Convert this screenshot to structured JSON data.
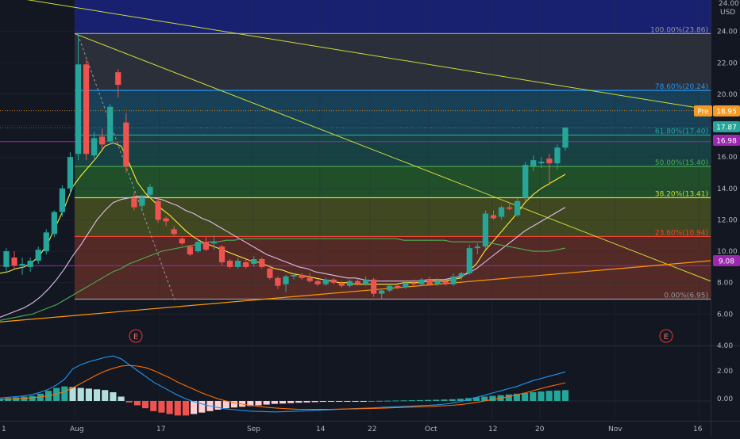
{
  "currency_label": "USD",
  "top_price_label": "24.00",
  "earnings_marker": "E",
  "price_axis": {
    "min": 4,
    "max": 26,
    "ticks": [
      "24.00",
      "22.00",
      "20.00",
      "18.00",
      "16.00",
      "14.00",
      "12.00",
      "10.00",
      "8.00",
      "6.00",
      "4.00"
    ]
  },
  "price_badges": [
    {
      "text": "Pre",
      "color": "#f59a23"
    },
    {
      "text": "18.95",
      "color": "#f59a23"
    },
    {
      "text": "17.87",
      "color": "#26a69a"
    },
    {
      "text": "16.98",
      "color": "#9c27b0"
    },
    {
      "text": "9.08",
      "color": "#9c27b0"
    }
  ],
  "macd_axis": {
    "ticks": [
      "2.00",
      "0.00"
    ]
  },
  "time_axis": {
    "labels": [
      "1",
      "Aug",
      "17",
      "Sep",
      "14",
      "22",
      "Oct",
      "12",
      "20",
      "Nov",
      "16"
    ]
  },
  "fibonacci": {
    "levels": [
      {
        "label": "100.00%(23.86)",
        "price": 23.86,
        "color": "#9598a1"
      },
      {
        "label": "78.60%(20.24)",
        "price": 20.24,
        "color": "#2196f3"
      },
      {
        "label": "61.80%(17.40)",
        "price": 17.4,
        "color": "#26a69a"
      },
      {
        "label": "50.00%(15.40)",
        "price": 15.4,
        "color": "#4caf50"
      },
      {
        "label": "38.20%(13.41)",
        "price": 13.41,
        "color": "#cddc39"
      },
      {
        "label": "23.60%(10.94)",
        "price": 10.94,
        "color": "#f44336"
      },
      {
        "label": "0.00%(6.95)",
        "price": 6.95,
        "color": "#9598a1"
      }
    ]
  },
  "chart_data": {
    "type": "candlestick",
    "instrument_currency": "USD",
    "y_range": [
      4,
      26
    ],
    "candles": [
      {
        "o": 9.0,
        "h": 10.2,
        "l": 8.6,
        "c": 10.0
      },
      {
        "o": 9.6,
        "h": 10.0,
        "l": 8.9,
        "c": 9.1
      },
      {
        "o": 9.1,
        "h": 9.6,
        "l": 8.5,
        "c": 9.2
      },
      {
        "o": 9.0,
        "h": 9.6,
        "l": 8.7,
        "c": 9.4
      },
      {
        "o": 9.4,
        "h": 10.3,
        "l": 9.2,
        "c": 10.1
      },
      {
        "o": 10.0,
        "h": 11.4,
        "l": 9.8,
        "c": 11.2
      },
      {
        "o": 11.1,
        "h": 12.6,
        "l": 10.9,
        "c": 12.5
      },
      {
        "o": 12.5,
        "h": 14.2,
        "l": 12.2,
        "c": 14.0
      },
      {
        "o": 14.0,
        "h": 16.3,
        "l": 13.6,
        "c": 16.0
      },
      {
        "o": 16.2,
        "h": 23.86,
        "l": 15.8,
        "c": 21.9
      },
      {
        "o": 21.9,
        "h": 22.2,
        "l": 15.8,
        "c": 16.2
      },
      {
        "o": 16.1,
        "h": 17.6,
        "l": 15.9,
        "c": 17.2
      },
      {
        "o": 17.3,
        "h": 17.8,
        "l": 16.5,
        "c": 16.8
      },
      {
        "o": 17.0,
        "h": 19.4,
        "l": 16.8,
        "c": 19.2
      },
      {
        "o": 21.4,
        "h": 21.6,
        "l": 19.8,
        "c": 20.6
      },
      {
        "o": 18.2,
        "h": 18.8,
        "l": 15.0,
        "c": 15.4
      },
      {
        "o": 13.4,
        "h": 13.8,
        "l": 12.6,
        "c": 12.8
      },
      {
        "o": 12.9,
        "h": 13.6,
        "l": 12.6,
        "c": 13.4
      },
      {
        "o": 13.6,
        "h": 14.3,
        "l": 13.4,
        "c": 14.1
      },
      {
        "o": 13.2,
        "h": 13.4,
        "l": 11.8,
        "c": 12.0
      },
      {
        "o": 12.1,
        "h": 12.2,
        "l": 11.6,
        "c": 11.9
      },
      {
        "o": 11.4,
        "h": 11.6,
        "l": 11.0,
        "c": 11.1
      },
      {
        "o": 10.8,
        "h": 10.9,
        "l": 10.4,
        "c": 10.5
      },
      {
        "o": 10.3,
        "h": 10.4,
        "l": 9.7,
        "c": 9.8
      },
      {
        "o": 10.0,
        "h": 10.8,
        "l": 9.9,
        "c": 10.6
      },
      {
        "o": 10.6,
        "h": 10.9,
        "l": 10.0,
        "c": 10.1
      },
      {
        "o": 10.5,
        "h": 11.0,
        "l": 10.1,
        "c": 10.6
      },
      {
        "o": 10.3,
        "h": 10.4,
        "l": 9.1,
        "c": 9.3
      },
      {
        "o": 9.4,
        "h": 9.5,
        "l": 8.9,
        "c": 9.0
      },
      {
        "o": 9.0,
        "h": 9.6,
        "l": 8.9,
        "c": 9.4
      },
      {
        "o": 9.3,
        "h": 9.5,
        "l": 8.9,
        "c": 9.0
      },
      {
        "o": 9.2,
        "h": 9.7,
        "l": 9.0,
        "c": 9.5
      },
      {
        "o": 9.5,
        "h": 9.6,
        "l": 8.9,
        "c": 9.0
      },
      {
        "o": 8.9,
        "h": 9.1,
        "l": 8.2,
        "c": 8.3
      },
      {
        "o": 8.3,
        "h": 8.4,
        "l": 7.6,
        "c": 7.8
      },
      {
        "o": 7.9,
        "h": 8.5,
        "l": 7.4,
        "c": 8.4
      },
      {
        "o": 8.4,
        "h": 8.6,
        "l": 8.2,
        "c": 8.5
      },
      {
        "o": 8.5,
        "h": 8.6,
        "l": 8.2,
        "c": 8.3
      },
      {
        "o": 8.3,
        "h": 8.6,
        "l": 8.0,
        "c": 8.1
      },
      {
        "o": 8.1,
        "h": 8.2,
        "l": 7.8,
        "c": 7.9
      },
      {
        "o": 7.9,
        "h": 8.3,
        "l": 7.8,
        "c": 8.2
      },
      {
        "o": 8.2,
        "h": 8.3,
        "l": 7.9,
        "c": 8.0
      },
      {
        "o": 8.0,
        "h": 8.1,
        "l": 7.7,
        "c": 7.8
      },
      {
        "o": 7.8,
        "h": 8.2,
        "l": 7.7,
        "c": 8.1
      },
      {
        "o": 8.1,
        "h": 8.3,
        "l": 7.8,
        "c": 7.9
      },
      {
        "o": 7.9,
        "h": 8.4,
        "l": 7.8,
        "c": 8.2
      },
      {
        "o": 8.2,
        "h": 8.3,
        "l": 7.1,
        "c": 7.3
      },
      {
        "o": 7.3,
        "h": 7.6,
        "l": 6.95,
        "c": 7.5
      },
      {
        "o": 7.5,
        "h": 7.9,
        "l": 7.4,
        "c": 7.8
      },
      {
        "o": 7.8,
        "h": 8.0,
        "l": 7.6,
        "c": 7.7
      },
      {
        "o": 7.7,
        "h": 8.1,
        "l": 7.6,
        "c": 8.0
      },
      {
        "o": 8.0,
        "h": 8.2,
        "l": 7.8,
        "c": 7.9
      },
      {
        "o": 7.9,
        "h": 8.3,
        "l": 7.8,
        "c": 8.2
      },
      {
        "o": 8.2,
        "h": 8.4,
        "l": 7.8,
        "c": 7.9
      },
      {
        "o": 7.9,
        "h": 8.3,
        "l": 7.8,
        "c": 8.1
      },
      {
        "o": 8.1,
        "h": 8.2,
        "l": 7.8,
        "c": 7.9
      },
      {
        "o": 7.9,
        "h": 8.6,
        "l": 7.8,
        "c": 8.4
      },
      {
        "o": 8.4,
        "h": 8.7,
        "l": 8.2,
        "c": 8.6
      },
      {
        "o": 8.6,
        "h": 10.4,
        "l": 8.5,
        "c": 10.2
      },
      {
        "o": 10.2,
        "h": 10.5,
        "l": 9.8,
        "c": 10.3
      },
      {
        "o": 10.3,
        "h": 12.6,
        "l": 10.1,
        "c": 12.4
      },
      {
        "o": 12.3,
        "h": 12.6,
        "l": 12.0,
        "c": 12.1
      },
      {
        "o": 12.2,
        "h": 12.9,
        "l": 12.0,
        "c": 12.8
      },
      {
        "o": 12.8,
        "h": 13.1,
        "l": 12.6,
        "c": 12.7
      },
      {
        "o": 12.3,
        "h": 13.4,
        "l": 12.2,
        "c": 13.2
      },
      {
        "o": 13.4,
        "h": 15.7,
        "l": 13.2,
        "c": 15.5
      },
      {
        "o": 15.4,
        "h": 16.1,
        "l": 15.1,
        "c": 15.8
      },
      {
        "o": 15.6,
        "h": 16.0,
        "l": 15.3,
        "c": 15.7
      },
      {
        "o": 15.9,
        "h": 16.2,
        "l": 14.2,
        "c": 15.6
      },
      {
        "o": 15.6,
        "h": 16.8,
        "l": 15.2,
        "c": 16.6
      },
      {
        "o": 16.6,
        "h": 17.9,
        "l": 16.4,
        "c": 17.87
      }
    ],
    "moving_averages": [
      {
        "color": "#ffeb3b",
        "values": [
          8.6,
          8.7,
          8.9,
          9.0,
          9.3,
          9.8,
          10.6,
          11.7,
          12.8,
          14.1,
          14.8,
          15.4,
          16.0,
          16.7,
          16.9,
          16.7,
          15.6,
          14.4,
          13.7,
          13.2,
          12.7,
          12.3,
          11.8,
          11.3,
          10.9,
          10.6,
          10.4,
          10.2,
          10.0,
          9.8,
          9.6,
          9.4,
          9.3,
          9.1,
          8.9,
          8.8,
          8.6,
          8.5,
          8.4,
          8.3,
          8.2,
          8.1,
          8.0,
          8.0,
          7.9,
          7.9,
          7.9,
          7.9,
          7.9,
          7.9,
          8.0,
          8.0,
          8.0,
          8.1,
          8.1,
          8.1,
          8.2,
          8.3,
          8.7,
          9.2,
          10.0,
          10.6,
          11.2,
          11.8,
          12.4,
          13.1,
          13.6,
          14.0,
          14.3,
          14.6,
          14.9
        ]
      },
      {
        "color": "#e1bee7",
        "values": [
          5.8,
          6.0,
          6.2,
          6.4,
          6.7,
          7.1,
          7.6,
          8.2,
          8.9,
          9.7,
          10.4,
          11.2,
          12.0,
          12.6,
          13.1,
          13.3,
          13.4,
          13.5,
          13.5,
          13.4,
          13.3,
          13.1,
          12.9,
          12.6,
          12.4,
          12.1,
          11.9,
          11.6,
          11.3,
          11.0,
          10.7,
          10.4,
          10.1,
          9.8,
          9.6,
          9.4,
          9.2,
          9.0,
          8.9,
          8.7,
          8.6,
          8.5,
          8.4,
          8.3,
          8.3,
          8.2,
          8.1,
          8.1,
          8.1,
          8.1,
          8.1,
          8.1,
          8.1,
          8.2,
          8.2,
          8.2,
          8.3,
          8.4,
          8.6,
          8.9,
          9.3,
          9.7,
          10.1,
          10.5,
          10.9,
          11.3,
          11.6,
          11.9,
          12.2,
          12.5,
          12.8
        ]
      },
      {
        "color": "#4caf50",
        "values": [
          5.6,
          5.7,
          5.8,
          5.9,
          6.0,
          6.2,
          6.4,
          6.6,
          6.9,
          7.2,
          7.5,
          7.8,
          8.1,
          8.4,
          8.7,
          8.9,
          9.2,
          9.4,
          9.6,
          9.8,
          10.0,
          10.1,
          10.2,
          10.3,
          10.4,
          10.5,
          10.6,
          10.6,
          10.7,
          10.7,
          10.8,
          10.8,
          10.8,
          10.8,
          10.8,
          10.8,
          10.8,
          10.8,
          10.8,
          10.8,
          10.8,
          10.8,
          10.8,
          10.8,
          10.8,
          10.8,
          10.8,
          10.8,
          10.8,
          10.8,
          10.7,
          10.7,
          10.7,
          10.7,
          10.7,
          10.7,
          10.6,
          10.6,
          10.6,
          10.6,
          10.6,
          10.5,
          10.4,
          10.3,
          10.2,
          10.1,
          10.0,
          10.0,
          10.0,
          10.1,
          10.2
        ]
      }
    ],
    "macd": {
      "y_range": [
        -1.2,
        3.6
      ],
      "histogram": [
        0.15,
        0.2,
        0.25,
        0.3,
        0.35,
        0.5,
        0.7,
        0.9,
        1.0,
        0.95,
        0.9,
        0.85,
        0.8,
        0.75,
        0.6,
        0.3,
        -0.1,
        -0.3,
        -0.5,
        -0.7,
        -0.8,
        -0.9,
        -1.0,
        -1.0,
        -0.9,
        -0.8,
        -0.7,
        -0.6,
        -0.5,
        -0.45,
        -0.4,
        -0.35,
        -0.3,
        -0.25,
        -0.2,
        -0.18,
        -0.15,
        -0.12,
        -0.1,
        -0.08,
        -0.06,
        -0.05,
        -0.04,
        -0.03,
        -0.02,
        -0.01,
        0.0,
        0.01,
        0.02,
        0.03,
        0.04,
        0.05,
        0.06,
        0.07,
        0.08,
        0.1,
        0.12,
        0.15,
        0.2,
        0.25,
        0.3,
        0.35,
        0.4,
        0.45,
        0.5,
        0.55,
        0.6,
        0.65,
        0.7,
        0.72,
        0.75
      ],
      "macd_line": {
        "color": "#2196f3",
        "values": [
          0.2,
          0.25,
          0.3,
          0.35,
          0.45,
          0.6,
          0.8,
          1.1,
          1.5,
          2.2,
          2.5,
          2.7,
          2.85,
          3.0,
          3.1,
          2.9,
          2.5,
          2.1,
          1.7,
          1.3,
          1.0,
          0.7,
          0.4,
          0.15,
          -0.05,
          -0.2,
          -0.35,
          -0.45,
          -0.55,
          -0.6,
          -0.65,
          -0.7,
          -0.72,
          -0.74,
          -0.75,
          -0.74,
          -0.72,
          -0.7,
          -0.68,
          -0.65,
          -0.62,
          -0.6,
          -0.57,
          -0.55,
          -0.52,
          -0.5,
          -0.48,
          -0.45,
          -0.42,
          -0.4,
          -0.37,
          -0.35,
          -0.32,
          -0.3,
          -0.27,
          -0.22,
          -0.15,
          -0.05,
          0.1,
          0.25,
          0.4,
          0.55,
          0.7,
          0.85,
          1.0,
          1.2,
          1.4,
          1.55,
          1.7,
          1.85,
          2.0
        ]
      },
      "signal_line": {
        "color": "#ff6d00",
        "values": [
          0.1,
          0.12,
          0.15,
          0.18,
          0.22,
          0.28,
          0.36,
          0.48,
          0.65,
          0.9,
          1.2,
          1.5,
          1.8,
          2.05,
          2.25,
          2.4,
          2.45,
          2.4,
          2.3,
          2.1,
          1.85,
          1.6,
          1.3,
          1.05,
          0.8,
          0.55,
          0.35,
          0.15,
          0.0,
          -0.12,
          -0.22,
          -0.3,
          -0.37,
          -0.43,
          -0.48,
          -0.52,
          -0.55,
          -0.57,
          -0.58,
          -0.58,
          -0.58,
          -0.57,
          -0.56,
          -0.55,
          -0.54,
          -0.53,
          -0.52,
          -0.5,
          -0.48,
          -0.46,
          -0.44,
          -0.42,
          -0.4,
          -0.38,
          -0.36,
          -0.33,
          -0.3,
          -0.25,
          -0.18,
          -0.1,
          0.0,
          0.1,
          0.2,
          0.3,
          0.42,
          0.55,
          0.7,
          0.85,
          1.0,
          1.12,
          1.25
        ]
      }
    }
  }
}
